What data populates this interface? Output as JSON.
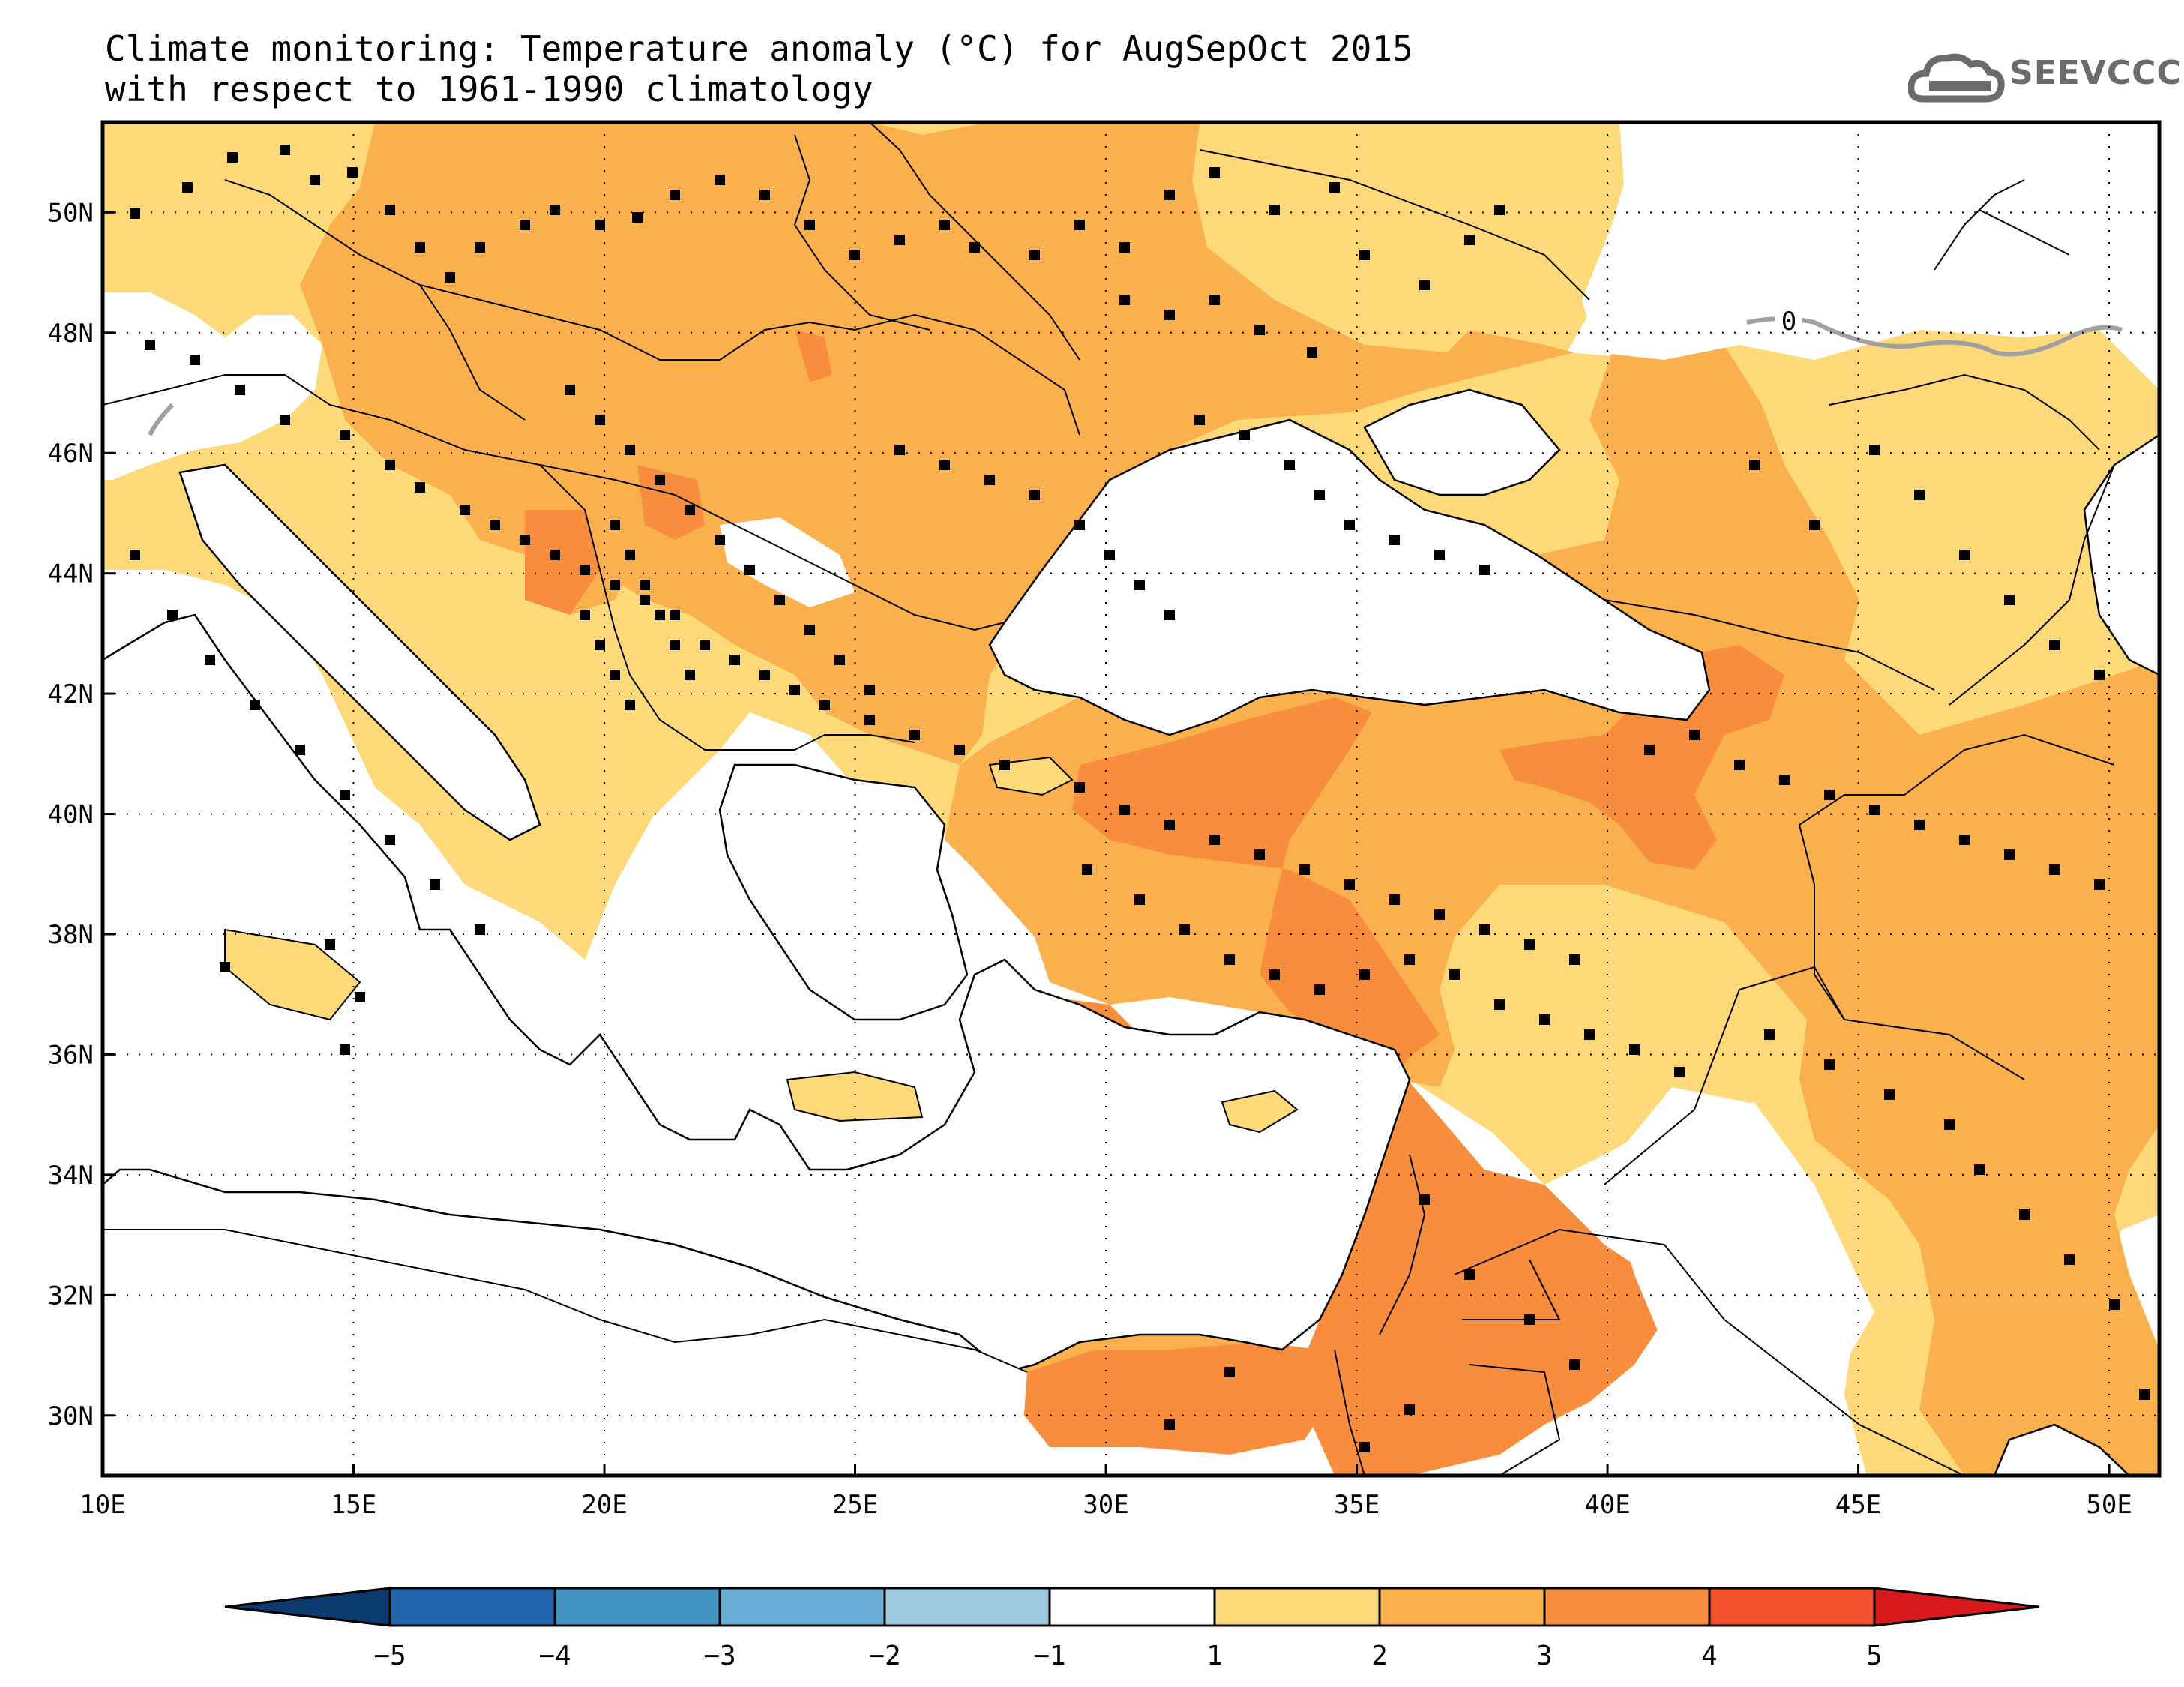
{
  "title_line1": "Climate monitoring: Temperature anomaly (°C) for AugSepOct 2015",
  "title_line2": "with respect to 1961-1990 climatology",
  "logo_text": "SEEVCCC",
  "contour_label": "0",
  "map": {
    "lon_range": [
      10,
      51
    ],
    "lat_range": [
      29,
      51.5
    ],
    "lon_ticks": [
      {
        "value": 10,
        "label": "10E"
      },
      {
        "value": 15,
        "label": "15E"
      },
      {
        "value": 20,
        "label": "20E"
      },
      {
        "value": 25,
        "label": "25E"
      },
      {
        "value": 30,
        "label": "30E"
      },
      {
        "value": 35,
        "label": "35E"
      },
      {
        "value": 40,
        "label": "40E"
      },
      {
        "value": 45,
        "label": "45E"
      },
      {
        "value": 50,
        "label": "50E"
      }
    ],
    "lat_ticks": [
      {
        "value": 30,
        "label": "30N"
      },
      {
        "value": 32,
        "label": "32N"
      },
      {
        "value": 34,
        "label": "34N"
      },
      {
        "value": 36,
        "label": "36N"
      },
      {
        "value": 38,
        "label": "38N"
      },
      {
        "value": 40,
        "label": "40N"
      },
      {
        "value": 42,
        "label": "42N"
      },
      {
        "value": 44,
        "label": "44N"
      },
      {
        "value": 46,
        "label": "46N"
      },
      {
        "value": 48,
        "label": "48N"
      },
      {
        "value": 50,
        "label": "50N"
      }
    ],
    "grid": "dotted"
  },
  "colorbar": {
    "labels": [
      "-5",
      "-4",
      "-3",
      "-2",
      "-1",
      "1",
      "2",
      "3",
      "4",
      "5"
    ],
    "colors": [
      "#0b3a6e",
      "#2166ac",
      "#4393c3",
      "#6baed6",
      "#9ecae1",
      "#ffffff",
      "#fdd97a",
      "#fbb04e",
      "#f98d3e",
      "#f5502d",
      "#d7191c"
    ]
  },
  "colors": {
    "anom_1_2": "#fdd97a",
    "anom_2_3": "#fbb04e",
    "anom_3_4": "#f98d3e",
    "station": "#000000",
    "logo": "#6b6b6b",
    "zero_contour": "#a0a0a0"
  }
}
